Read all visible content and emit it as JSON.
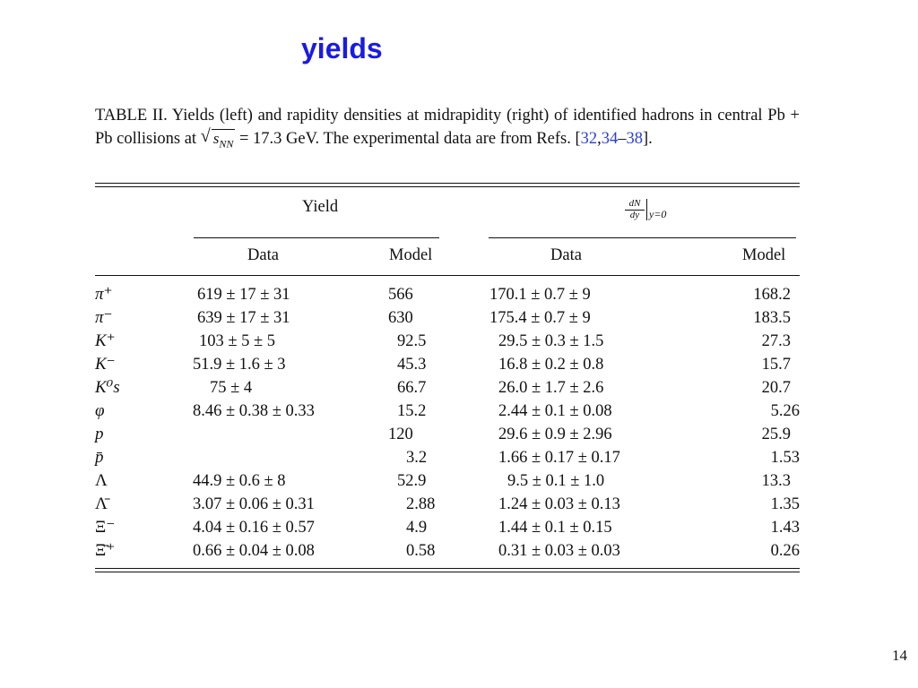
{
  "slide": {
    "title": "yields",
    "page_number": "14"
  },
  "caption": {
    "text_part1": "TABLE II. Yields (left) and rapidity densities at midrapidity (right) of identified hadrons in central Pb + Pb collisions at ",
    "sqrt_label": "s",
    "sqrt_sub": "NN",
    "text_part2": " = 17.3 GeV. The experimental data are from Refs. [",
    "ref1": "32",
    "comma": ",",
    "ref2": "34",
    "dash": "–",
    "ref3": "38",
    "text_part3": "]."
  },
  "table": {
    "group_left": "Yield",
    "group_right_num": "dN",
    "group_right_den": "dy",
    "group_right_eval": "y=0",
    "columns": [
      "Data",
      "Model",
      "Data",
      "Model"
    ],
    "rows": [
      {
        "particle": "π⁺",
        "yield_data": "619 ± 17 ± 31",
        "yield_model": "566",
        "dndy_data": "170.1 ± 0.7 ± 9",
        "dndy_model": "168.2"
      },
      {
        "particle": "π⁻",
        "yield_data": "639 ± 17 ± 31",
        "yield_model": "630",
        "dndy_data": "175.4 ± 0.7 ± 9",
        "dndy_model": "183.5"
      },
      {
        "particle": "K⁺",
        "yield_data": "103 ± 5 ± 5",
        "yield_model": "92.5",
        "dndy_data": "29.5 ± 0.3 ± 1.5",
        "dndy_model": "27.3"
      },
      {
        "particle": "K⁻",
        "yield_data": "51.9 ± 1.6 ± 3",
        "yield_model": "45.3",
        "dndy_data": "16.8 ± 0.2 ± 0.8",
        "dndy_model": "15.7"
      },
      {
        "particle": "K⁰s",
        "yield_data": "75 ± 4",
        "yield_model": "66.7",
        "dndy_data": "26.0 ± 1.7 ± 2.6",
        "dndy_model": "20.7"
      },
      {
        "particle": "φ",
        "yield_data": "8.46 ± 0.38 ± 0.33",
        "yield_model": "15.2",
        "dndy_data": "2.44 ± 0.1 ± 0.08",
        "dndy_model": "5.26"
      },
      {
        "particle": "p",
        "yield_data": "",
        "yield_model": "120",
        "dndy_data": "29.6 ± 0.9 ± 2.96",
        "dndy_model": "25.9"
      },
      {
        "particle": "p̄",
        "yield_data": "",
        "yield_model": "3.2",
        "dndy_data": "1.66 ± 0.17 ± 0.17",
        "dndy_model": "1.53"
      },
      {
        "particle": "Λ",
        "yield_data": "44.9 ± 0.6 ± 8",
        "yield_model": "52.9",
        "dndy_data": "9.5 ± 0.1 ± 1.0",
        "dndy_model": "13.3"
      },
      {
        "particle": "Λ̄",
        "yield_data": "3.07 ± 0.06 ± 0.31",
        "yield_model": "2.88",
        "dndy_data": "1.24 ± 0.03 ± 0.13",
        "dndy_model": "1.35"
      },
      {
        "particle": "Ξ⁻",
        "yield_data": "4.04 ± 0.16 ± 0.57",
        "yield_model": "4.9",
        "dndy_data": "1.44 ± 0.1 ± 0.15",
        "dndy_model": "1.43"
      },
      {
        "particle": "Ξ̄⁺",
        "yield_data": "0.66 ± 0.04 ± 0.08",
        "yield_model": "0.58",
        "dndy_data": "0.31 ± 0.03 ± 0.03",
        "dndy_model": "0.26"
      }
    ]
  }
}
